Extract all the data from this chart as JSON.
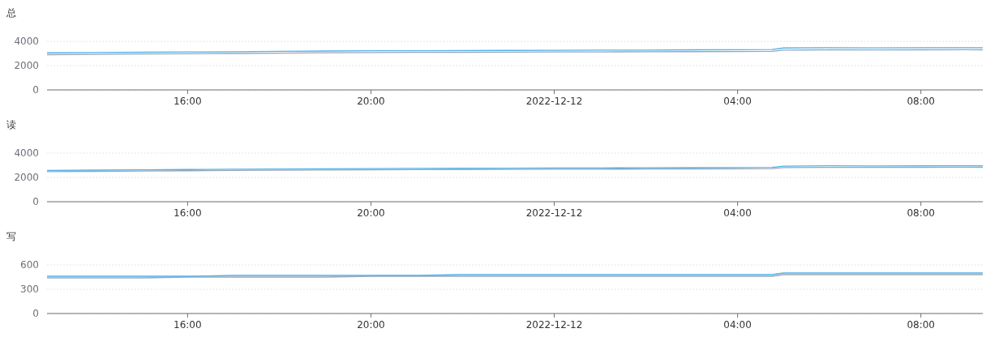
{
  "chart_data": [
    {
      "type": "line",
      "title": "总",
      "x": [
        "2022-12-11T12:56",
        "2022-12-11T14:00",
        "2022-12-11T15:00",
        "2022-12-11T16:00",
        "2022-12-11T17:00",
        "2022-12-11T18:00",
        "2022-12-11T19:00",
        "2022-12-11T20:00",
        "2022-12-11T21:00",
        "2022-12-11T22:00",
        "2022-12-11T23:00",
        "2022-12-12T00:00",
        "2022-12-12T01:00",
        "2022-12-12T02:00",
        "2022-12-12T03:00",
        "2022-12-12T04:00",
        "2022-12-12T04:45",
        "2022-12-12T05:00",
        "2022-12-12T06:00",
        "2022-12-12T07:00",
        "2022-12-12T08:00",
        "2022-12-12T09:00",
        "2022-12-12T09:21"
      ],
      "xlim": [
        "2022-12-11T12:56",
        "2022-12-12T09:21"
      ],
      "xticks": [
        {
          "value": "2022-12-11T16:00",
          "label": "16:00"
        },
        {
          "value": "2022-12-11T20:00",
          "label": "20:00"
        },
        {
          "value": "2022-12-12T00:00",
          "label": "2022-12-12"
        },
        {
          "value": "2022-12-12T04:00",
          "label": "04:00"
        },
        {
          "value": "2022-12-12T08:00",
          "label": "08:00"
        }
      ],
      "ylim": [
        0,
        4000
      ],
      "yticks": [
        0,
        2000,
        4000
      ],
      "grid": "y",
      "marker": "none",
      "series": [
        {
          "color": "#9aa6b8",
          "values": [
            2900,
            2920,
            2960,
            2980,
            3000,
            3030,
            3060,
            3080,
            3090,
            3100,
            3110,
            3120,
            3130,
            3140,
            3150,
            3160,
            3170,
            3280,
            3300,
            3290,
            3300,
            3310,
            3300
          ]
        },
        {
          "color": "#4fb3ea",
          "values": [
            3050,
            3070,
            3100,
            3120,
            3140,
            3180,
            3200,
            3220,
            3230,
            3240,
            3250,
            3260,
            3270,
            3280,
            3300,
            3310,
            3320,
            3450,
            3480,
            3460,
            3470,
            3480,
            3470
          ]
        }
      ]
    },
    {
      "type": "line",
      "title": "读",
      "x": [
        "2022-12-11T12:56",
        "2022-12-11T14:00",
        "2022-12-11T15:00",
        "2022-12-11T16:00",
        "2022-12-11T17:00",
        "2022-12-11T18:00",
        "2022-12-11T19:00",
        "2022-12-11T20:00",
        "2022-12-11T21:00",
        "2022-12-11T22:00",
        "2022-12-11T23:00",
        "2022-12-12T00:00",
        "2022-12-12T01:00",
        "2022-12-12T02:00",
        "2022-12-12T03:00",
        "2022-12-12T04:00",
        "2022-12-12T04:45",
        "2022-12-12T05:00",
        "2022-12-12T06:00",
        "2022-12-12T07:00",
        "2022-12-12T08:00",
        "2022-12-12T09:00",
        "2022-12-12T09:21"
      ],
      "xlim": [
        "2022-12-11T12:56",
        "2022-12-12T09:21"
      ],
      "xticks": [
        {
          "value": "2022-12-11T16:00",
          "label": "16:00"
        },
        {
          "value": "2022-12-11T20:00",
          "label": "20:00"
        },
        {
          "value": "2022-12-12T00:00",
          "label": "2022-12-12"
        },
        {
          "value": "2022-12-12T04:00",
          "label": "04:00"
        },
        {
          "value": "2022-12-12T08:00",
          "label": "08:00"
        }
      ],
      "ylim": [
        0,
        4000
      ],
      "yticks": [
        0,
        2000,
        4000
      ],
      "grid": "y",
      "marker": "none",
      "series": [
        {
          "color": "#9aa6b8",
          "values": [
            2480,
            2500,
            2530,
            2550,
            2570,
            2590,
            2610,
            2630,
            2640,
            2650,
            2660,
            2670,
            2680,
            2690,
            2700,
            2710,
            2720,
            2810,
            2830,
            2820,
            2830,
            2840,
            2830
          ]
        },
        {
          "color": "#4fb3ea",
          "values": [
            2580,
            2600,
            2630,
            2650,
            2670,
            2690,
            2710,
            2730,
            2740,
            2750,
            2760,
            2770,
            2780,
            2790,
            2800,
            2810,
            2820,
            2930,
            2960,
            2940,
            2950,
            2960,
            2950
          ]
        }
      ]
    },
    {
      "type": "line",
      "title": "写",
      "x": [
        "2022-12-11T12:56",
        "2022-12-11T14:00",
        "2022-12-11T15:00",
        "2022-12-11T16:00",
        "2022-12-11T17:00",
        "2022-12-11T18:00",
        "2022-12-11T19:00",
        "2022-12-11T20:00",
        "2022-12-11T21:00",
        "2022-12-11T22:00",
        "2022-12-11T23:00",
        "2022-12-12T00:00",
        "2022-12-12T01:00",
        "2022-12-12T02:00",
        "2022-12-12T03:00",
        "2022-12-12T04:00",
        "2022-12-12T04:45",
        "2022-12-12T05:00",
        "2022-12-12T06:00",
        "2022-12-12T07:00",
        "2022-12-12T08:00",
        "2022-12-12T09:00",
        "2022-12-12T09:21"
      ],
      "xlim": [
        "2022-12-11T12:56",
        "2022-12-12T09:21"
      ],
      "xticks": [
        {
          "value": "2022-12-11T16:00",
          "label": "16:00"
        },
        {
          "value": "2022-12-11T20:00",
          "label": "20:00"
        },
        {
          "value": "2022-12-12T00:00",
          "label": "2022-12-12"
        },
        {
          "value": "2022-12-12T04:00",
          "label": "04:00"
        },
        {
          "value": "2022-12-12T08:00",
          "label": "08:00"
        }
      ],
      "ylim": [
        0,
        600
      ],
      "yticks": [
        0,
        300,
        600
      ],
      "grid": "y",
      "marker": "none",
      "series": [
        {
          "color": "#9aa6b8",
          "values": [
            440,
            440,
            440,
            450,
            450,
            450,
            450,
            460,
            460,
            460,
            460,
            460,
            460,
            460,
            460,
            460,
            460,
            480,
            480,
            480,
            480,
            480,
            480
          ]
        },
        {
          "color": "#4fb3ea",
          "values": [
            460,
            460,
            460,
            460,
            470,
            470,
            470,
            470,
            470,
            480,
            480,
            480,
            480,
            480,
            480,
            480,
            480,
            500,
            500,
            500,
            500,
            500,
            500
          ]
        }
      ]
    }
  ]
}
